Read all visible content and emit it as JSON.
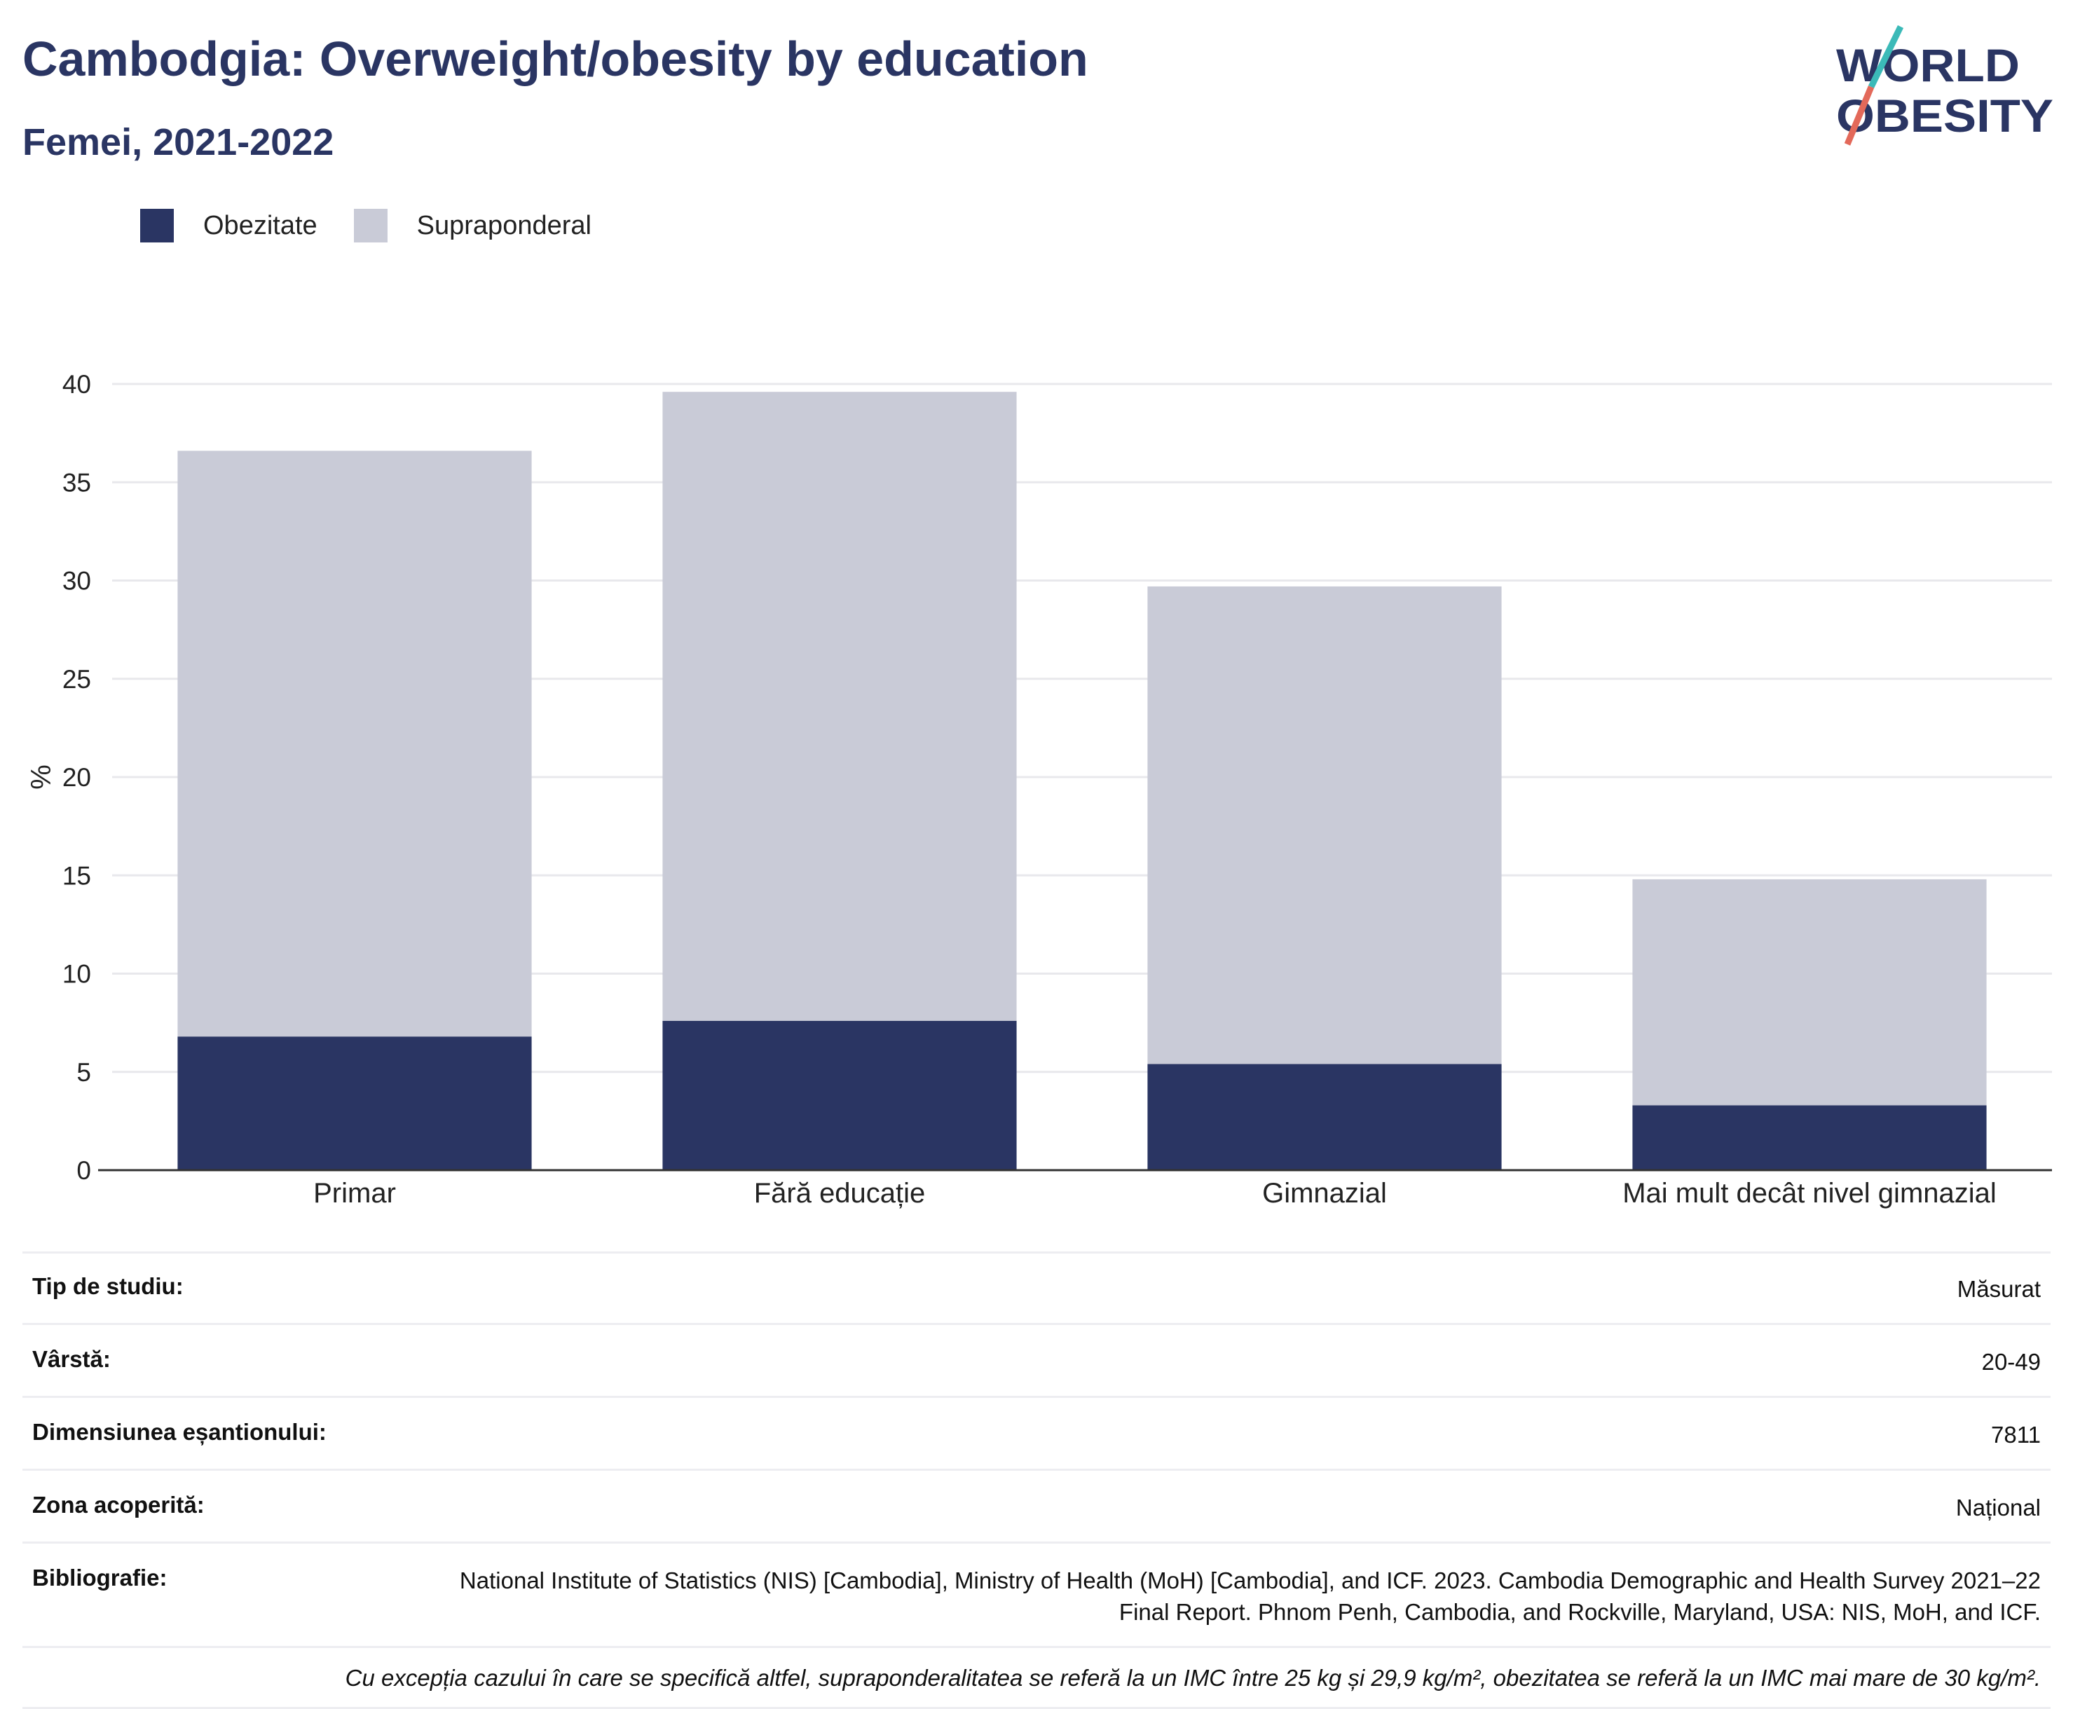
{
  "header": {
    "title": "Cambodgia: Overweight/obesity by education",
    "subtitle": "Femei, 2021-2022"
  },
  "logo": {
    "line1": "WORLD",
    "line2": "OBESITY"
  },
  "chart_data": {
    "type": "bar",
    "stacked": true,
    "categories": [
      "Primar",
      "Fără educație",
      "Gimnazial",
      "Mai mult decât nivel gimnazial"
    ],
    "series": [
      {
        "name": "Obezitate",
        "color": "#2a3563",
        "values": [
          6.8,
          7.6,
          5.4,
          3.3
        ]
      },
      {
        "name": "Supraponderal",
        "color": "#c9cbd7",
        "values": [
          29.8,
          32.0,
          24.3,
          11.5
        ]
      }
    ],
    "totals": [
      36.6,
      39.6,
      29.7,
      14.8
    ],
    "ylabel": "%",
    "ylim": [
      0,
      40
    ],
    "yticks": [
      0,
      5,
      10,
      15,
      20,
      25,
      30,
      35,
      40
    ],
    "grid": true,
    "legend_position": "top-left"
  },
  "info": {
    "rows": [
      {
        "label": "Tip de studiu:",
        "value": "Măsurat"
      },
      {
        "label": "Vârstă:",
        "value": "20-49"
      },
      {
        "label": "Dimensiunea eșantionului:",
        "value": "7811"
      },
      {
        "label": "Zona acoperită:",
        "value": "Național"
      },
      {
        "label": "Bibliografie:",
        "value": "National Institute of Statistics (NIS) [Cambodia], Ministry of Health (MoH) [Cambodia], and ICF. 2023. Cambodia Demographic and Health Survey 2021–22 Final Report. Phnom Penh, Cambodia, and Rockville, Maryland, USA: NIS, MoH, and ICF."
      }
    ],
    "note": "Cu excepția cazului în care se specifică altfel, supraponderalitatea se referă la un IMC între 25 kg și 29,9 kg/m², obezitatea se referă la un IMC mai mare de 30 kg/m²."
  }
}
